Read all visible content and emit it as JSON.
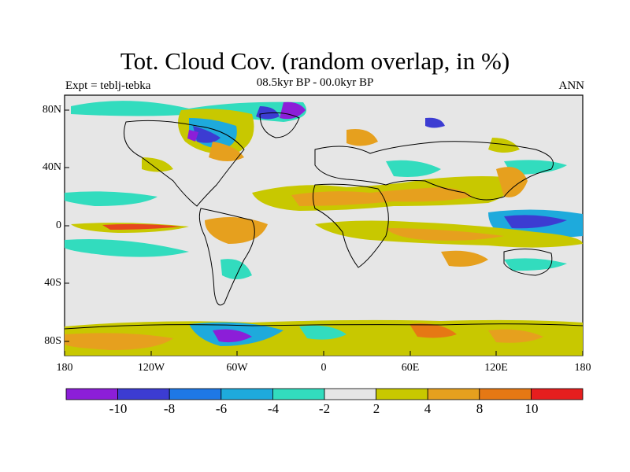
{
  "title": "Tot. Cloud Cov. (random overlap, in %)",
  "subtitle_left": "Expt = teblj-tebka",
  "subtitle_center": "08.5kyr BP - 00.0kyr BP",
  "subtitle_right": "ANN",
  "lat_ticks": [
    "80N",
    "40N",
    "0",
    "40S",
    "80S"
  ],
  "lon_ticks": [
    "180",
    "120W",
    "60W",
    "0",
    "60E",
    "120E",
    "180"
  ],
  "colorbar": {
    "colors": [
      "#8c1ed8",
      "#3c3cd2",
      "#1e78e6",
      "#1eaadc",
      "#32dcbe",
      "#e6e6e6",
      "#c8c800",
      "#e6a01e",
      "#e67814",
      "#e6461e",
      "#e61e1e"
    ],
    "labels": [
      "-10",
      "-8",
      "-6",
      "-4",
      "-2",
      "2",
      "4",
      "8",
      "10"
    ]
  },
  "colors": {
    "land_bg": "#e6e6e6",
    "coast": "#000000"
  }
}
